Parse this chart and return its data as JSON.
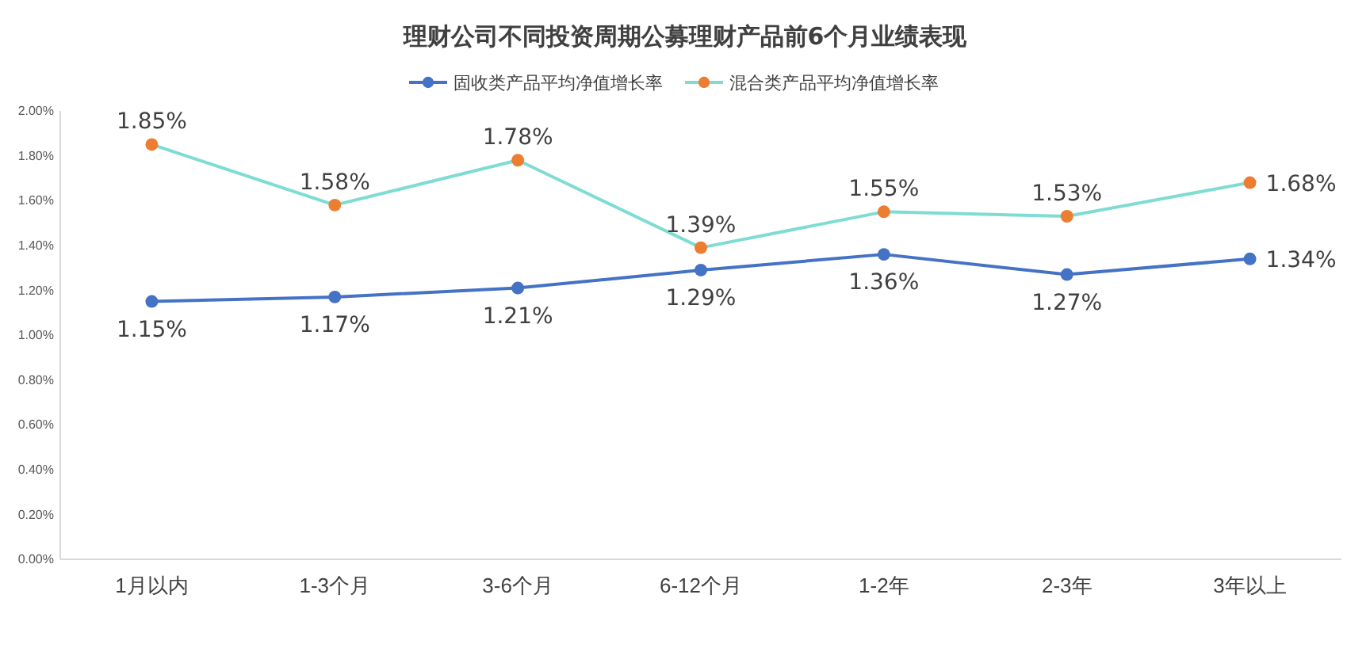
{
  "chart_data": {
    "type": "line",
    "title": "理财公司不同投资周期公募理财产品前6个月业绩表现",
    "categories": [
      "1月以内",
      "1-3个月",
      "3-6个月",
      "6-12个月",
      "1-2年",
      "2-3年",
      "3年以上"
    ],
    "series": [
      {
        "name": "固收类产品平均净值增长率",
        "color": "#4472c4",
        "values": [
          1.15,
          1.17,
          1.21,
          1.29,
          1.36,
          1.27,
          1.34
        ],
        "value_labels": [
          "1.15%",
          "1.17%",
          "1.21%",
          "1.29%",
          "1.36%",
          "1.27%",
          "1.34%"
        ]
      },
      {
        "name": "混合类产品平均净值增长率",
        "color": "#7fdcd3",
        "colors": [
          "#ed7d31",
          "#ed7d31",
          "#ed7d31",
          "#ed7d31",
          "#ed7d31",
          "#ed7d31",
          "#ed7d31"
        ],
        "values": [
          1.85,
          1.58,
          1.78,
          1.39,
          1.55,
          1.53,
          1.68
        ],
        "value_labels": [
          "1.85%",
          "1.58%",
          "1.78%",
          "1.39%",
          "1.55%",
          "1.53%",
          "1.68%"
        ]
      }
    ],
    "ylim": [
      0,
      2
    ],
    "yticks": [
      {
        "value": 0,
        "label": "0.00%"
      },
      {
        "value": 0.2,
        "label": "0.20%"
      },
      {
        "value": 0.4,
        "label": "0.40%"
      },
      {
        "value": 0.6,
        "label": "0.60%"
      },
      {
        "value": 0.8,
        "label": "0.80%"
      },
      {
        "value": 1,
        "label": "1.00%"
      },
      {
        "value": 1.2,
        "label": "1.20%"
      },
      {
        "value": 1.4,
        "label": "1.40%"
      },
      {
        "value": 1.6,
        "label": "1.60%"
      },
      {
        "value": 1.8,
        "label": "1.80%"
      },
      {
        "value": 2,
        "label": "2.00%"
      }
    ],
    "legend": "top",
    "marker": "circle",
    "line_style": "solid"
  }
}
